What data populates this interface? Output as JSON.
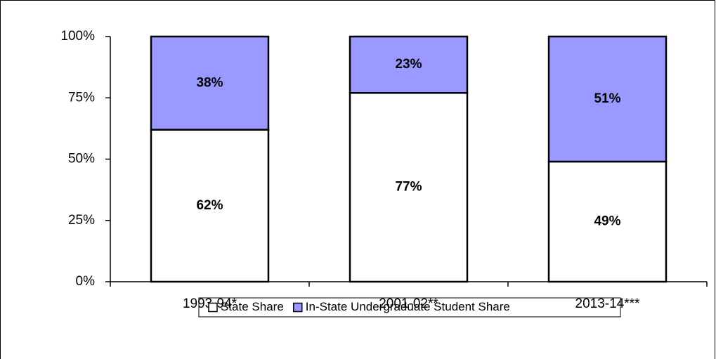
{
  "chart_data": {
    "type": "stacked-bar",
    "categories": [
      "1993-94*",
      "2001-02**",
      "2013-14***"
    ],
    "series": [
      {
        "name": "State Share",
        "color": "#ffffff",
        "values": [
          62,
          77,
          49
        ],
        "value_labels": [
          "62%",
          "77%",
          "49%"
        ]
      },
      {
        "name": "In-State Undergraduate Student Share",
        "color": "#9999ff",
        "values": [
          38,
          23,
          51
        ],
        "value_labels": [
          "38%",
          "23%",
          "51%"
        ]
      }
    ],
    "ylim": [
      0,
      100
    ],
    "yticks": [
      {
        "value": 0,
        "label": "0%"
      },
      {
        "value": 25,
        "label": "25%"
      },
      {
        "value": 50,
        "label": "50%"
      },
      {
        "value": 75,
        "label": "75%"
      },
      {
        "value": 100,
        "label": "100%"
      }
    ],
    "grid": false,
    "legend": "bottom"
  }
}
